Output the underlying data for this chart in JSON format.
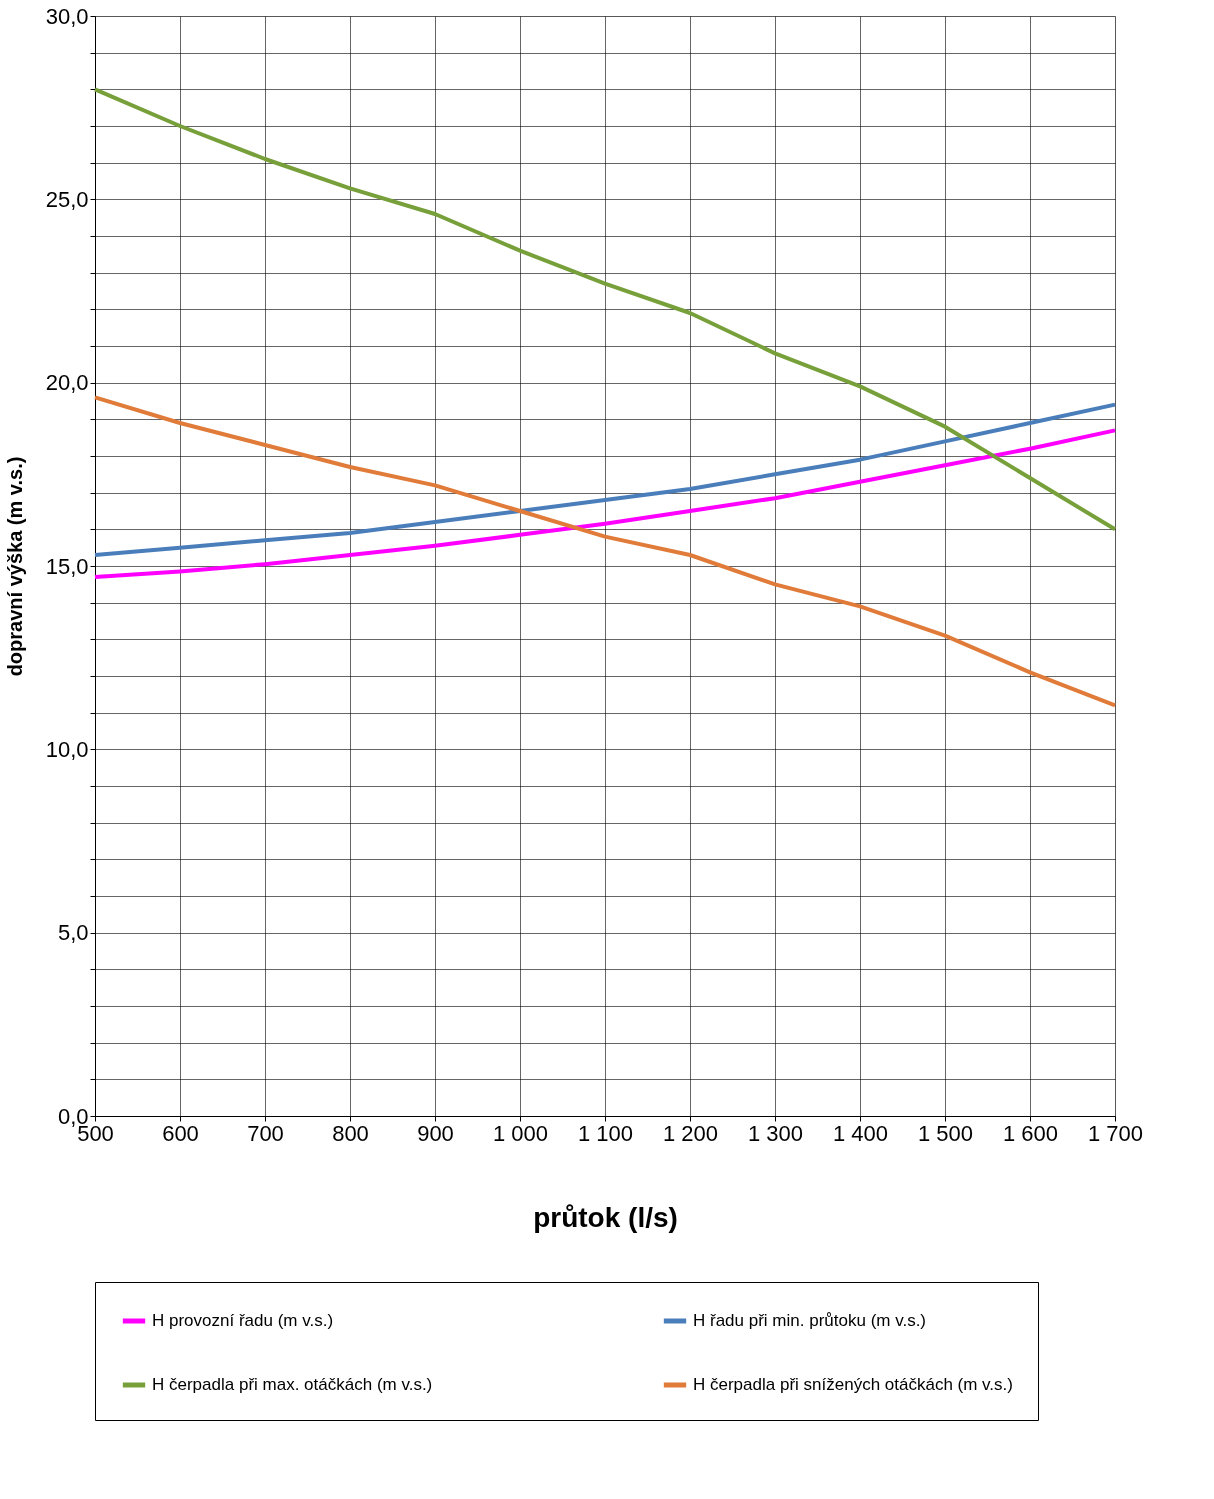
{
  "chart_data": {
    "type": "line",
    "xlabel": "průtok (l/s)",
    "ylabel": "dopravní výška (m v.s.)",
    "x": [
      500,
      600,
      700,
      800,
      900,
      1000,
      1100,
      1200,
      1300,
      1400,
      1500,
      1600,
      1700
    ],
    "series": [
      {
        "name": "H provozní řadu (m v.s.)",
        "color": "#ff00ff",
        "values": [
          14.7,
          14.85,
          15.05,
          15.3,
          15.55,
          15.85,
          16.15,
          16.5,
          16.85,
          17.3,
          17.75,
          18.2,
          18.7
        ]
      },
      {
        "name": "H řadu při min. průtoku (m v.s.)",
        "color": "#4a7ebb",
        "values": [
          15.3,
          15.5,
          15.7,
          15.9,
          16.2,
          16.5,
          16.8,
          17.1,
          17.5,
          17.9,
          18.4,
          18.9,
          19.4
        ]
      },
      {
        "name": "H čerpadla při max. otáčkách (m v.s.)",
        "color": "#77a03a",
        "values": [
          28.0,
          27.0,
          26.1,
          25.3,
          24.6,
          23.6,
          22.7,
          21.9,
          20.8,
          19.9,
          18.8,
          17.4,
          16.0
        ]
      },
      {
        "name": "H čerpadla při snížených otáčkách (m v.s.)",
        "color": "#e07b39",
        "values": [
          19.6,
          18.9,
          18.3,
          17.7,
          17.2,
          16.5,
          15.8,
          15.3,
          14.5,
          13.9,
          13.1,
          12.1,
          11.2
        ]
      }
    ],
    "xlim": [
      500,
      1700
    ],
    "xticks": [
      500,
      600,
      700,
      800,
      900,
      {
        "value": 1000,
        "label": "1 000"
      },
      {
        "value": 1100,
        "label": "1 100"
      },
      {
        "value": 1200,
        "label": "1 200"
      },
      {
        "value": 1300,
        "label": "1 300"
      },
      {
        "value": 1400,
        "label": "1 400"
      },
      {
        "value": 1500,
        "label": "1 500"
      },
      {
        "value": 1600,
        "label": "1 600"
      },
      {
        "value": 1700,
        "label": "1 700"
      }
    ],
    "ylim": [
      0,
      30
    ],
    "yticks": [
      {
        "value": 0,
        "label": "0,0"
      },
      {
        "value": 1,
        "label": null
      },
      {
        "value": 2,
        "label": null
      },
      {
        "value": 3,
        "label": null
      },
      {
        "value": 4,
        "label": null
      },
      {
        "value": 5,
        "label": "5,0"
      },
      {
        "value": 6,
        "label": null
      },
      {
        "value": 7,
        "label": null
      },
      {
        "value": 8,
        "label": null
      },
      {
        "value": 9,
        "label": null
      },
      {
        "value": 10,
        "label": "10,0"
      },
      {
        "value": 11,
        "label": null
      },
      {
        "value": 12,
        "label": null
      },
      {
        "value": 13,
        "label": null
      },
      {
        "value": 14,
        "label": null
      },
      {
        "value": 15,
        "label": "15,0"
      },
      {
        "value": 16,
        "label": null
      },
      {
        "value": 17,
        "label": null
      },
      {
        "value": 18,
        "label": null
      },
      {
        "value": 19,
        "label": null
      },
      {
        "value": 20,
        "label": "20,0"
      },
      {
        "value": 21,
        "label": null
      },
      {
        "value": 22,
        "label": null
      },
      {
        "value": 23,
        "label": null
      },
      {
        "value": 24,
        "label": null
      },
      {
        "value": 25,
        "label": "25,0"
      },
      {
        "value": 26,
        "label": null
      },
      {
        "value": 27,
        "label": null
      },
      {
        "value": 28,
        "label": null
      },
      {
        "value": 29,
        "label": null
      },
      {
        "value": 30,
        "label": "30,0"
      }
    ],
    "grid": true,
    "legend": "bottom",
    "marker": "none",
    "line_style": "solid"
  }
}
